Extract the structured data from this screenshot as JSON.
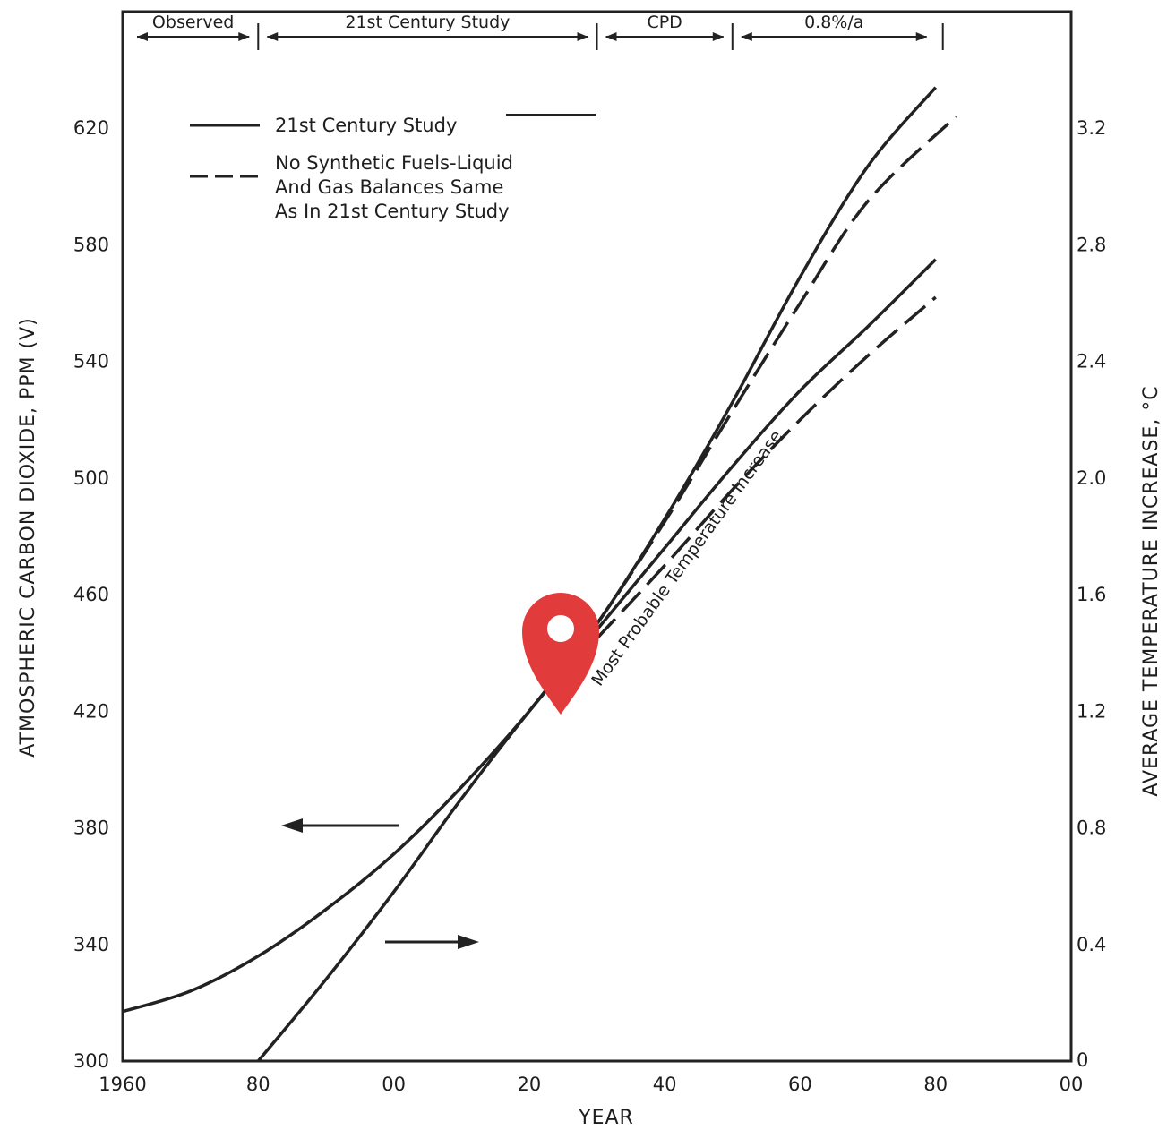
{
  "chart_data": {
    "type": "line",
    "periods": [
      "Observed",
      "21st Century Study",
      "CPD",
      "0.8%/a"
    ],
    "legend": [
      {
        "style": "solid",
        "label_lines": [
          "21st Century Study"
        ]
      },
      {
        "style": "dashed",
        "label_lines": [
          "No Synthetic Fuels-Liquid",
          "And Gas Balances Same",
          "As In 21st Century Study"
        ]
      }
    ],
    "annotation": "Most Probable Temperature Increase",
    "xlabel": "YEAR",
    "x_ticks": [
      {
        "value": 1960,
        "label": "1960"
      },
      {
        "value": 1980,
        "label": "80"
      },
      {
        "value": 2000,
        "label": "00"
      },
      {
        "value": 2020,
        "label": "20"
      },
      {
        "value": 2040,
        "label": "40"
      },
      {
        "value": 2060,
        "label": "60"
      },
      {
        "value": 2080,
        "label": "80"
      },
      {
        "value": 2100,
        "label": "00"
      }
    ],
    "xlim": [
      1960,
      2100
    ],
    "ylabel_left": "ATMOSPHERIC CARBON DIOXIDE, PPM (V)",
    "ylim_left": [
      300,
      660
    ],
    "y_ticks_left": [
      "300",
      "340",
      "380",
      "420",
      "460",
      "500",
      "540",
      "580",
      "620"
    ],
    "ylabel_right": "AVERAGE TEMPERATURE INCREASE, °C",
    "ylim_right": [
      0,
      3.6
    ],
    "y_ticks_right": [
      "0",
      "0.4",
      "0.8",
      "1.2",
      "1.6",
      "2.0",
      "2.4",
      "2.8",
      "3.2"
    ],
    "series": [
      {
        "axis": "left",
        "style": "solid",
        "points": [
          [
            1960,
            317
          ],
          [
            1970,
            324
          ],
          [
            1980,
            336
          ],
          [
            1990,
            352
          ],
          [
            2000,
            371
          ],
          [
            2010,
            394
          ],
          [
            2020,
            420
          ],
          [
            2030,
            450
          ],
          [
            2040,
            486
          ],
          [
            2050,
            526
          ],
          [
            2060,
            569
          ],
          [
            2070,
            607
          ],
          [
            2080,
            634
          ]
        ]
      },
      {
        "axis": "left",
        "style": "dashed",
        "points": [
          [
            2020,
            420
          ],
          [
            2030,
            450
          ],
          [
            2040,
            485
          ],
          [
            2050,
            523
          ],
          [
            2060,
            560
          ],
          [
            2070,
            595
          ],
          [
            2083,
            624
          ]
        ]
      },
      {
        "axis": "right",
        "style": "solid",
        "points": [
          [
            1980,
            0.0
          ],
          [
            1990,
            0.28
          ],
          [
            2000,
            0.58
          ],
          [
            2010,
            0.9
          ],
          [
            2020,
            1.2
          ],
          [
            2030,
            1.48
          ],
          [
            2040,
            1.76
          ],
          [
            2050,
            2.04
          ],
          [
            2060,
            2.3
          ],
          [
            2070,
            2.52
          ],
          [
            2080,
            2.75
          ]
        ]
      },
      {
        "axis": "right",
        "style": "dashed",
        "points": [
          [
            2030,
            1.45
          ],
          [
            2040,
            1.7
          ],
          [
            2050,
            1.96
          ],
          [
            2060,
            2.2
          ],
          [
            2070,
            2.42
          ],
          [
            2080,
            2.62
          ]
        ]
      }
    ],
    "grid": false
  }
}
